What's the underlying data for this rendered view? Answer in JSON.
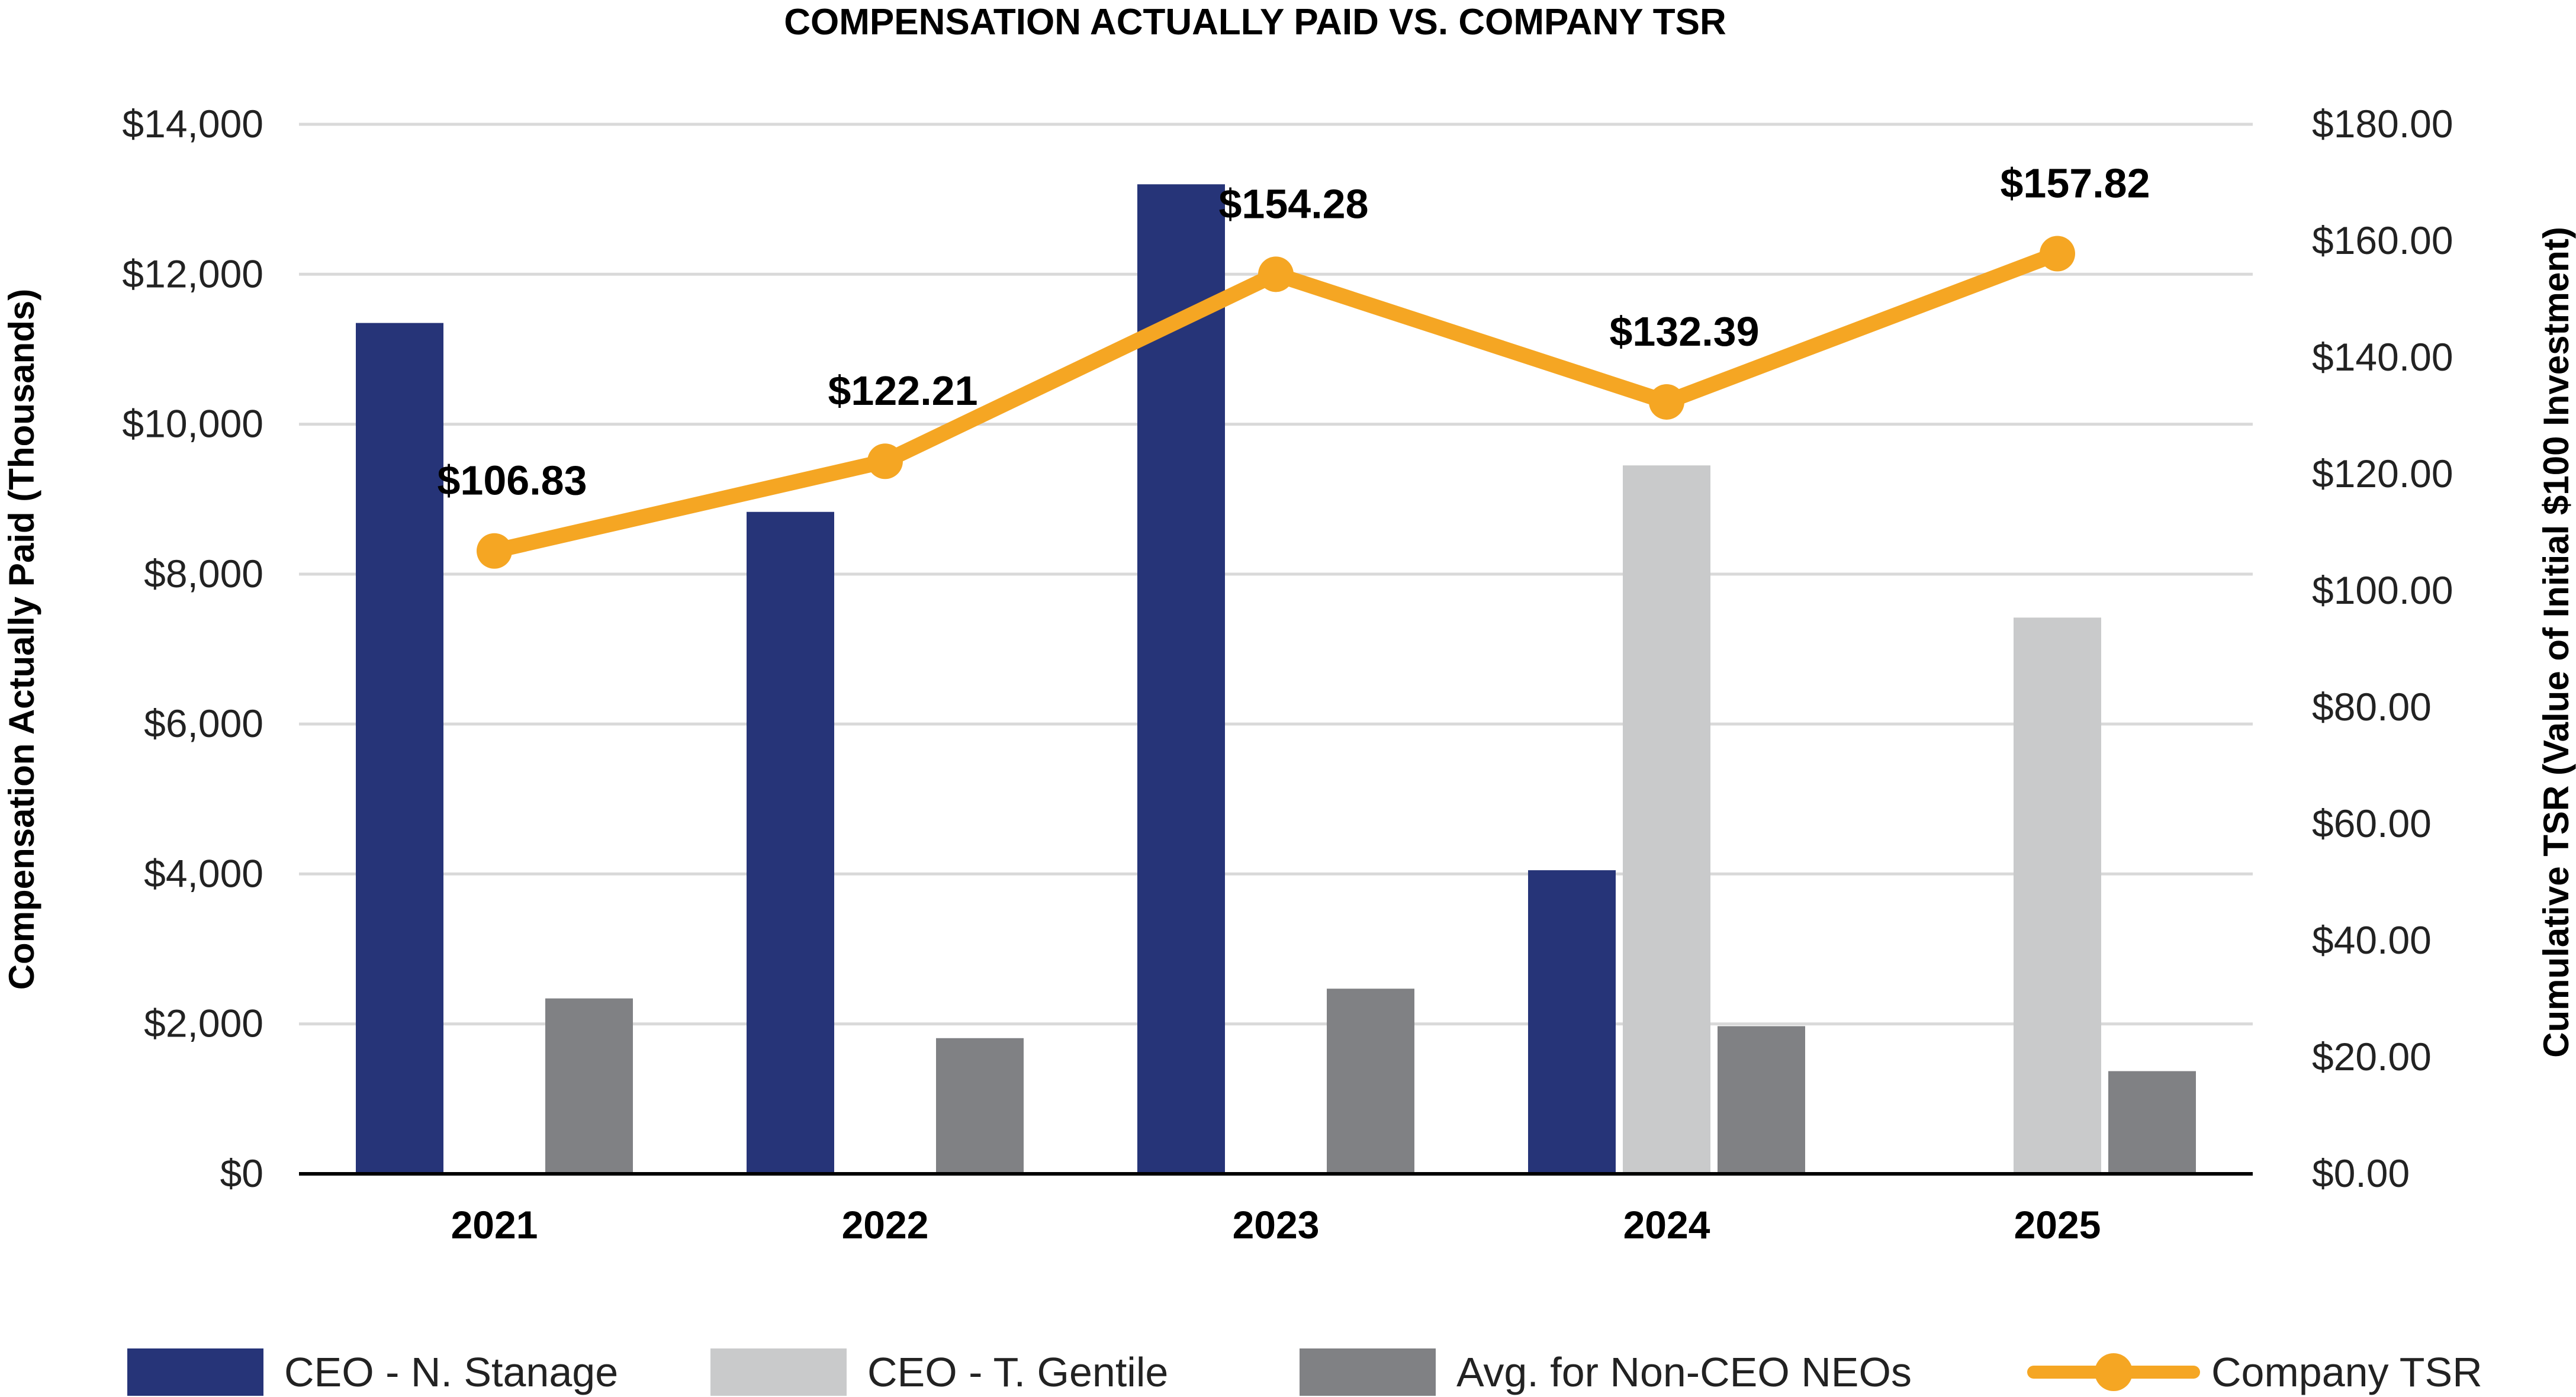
{
  "chart_data": {
    "type": "bar",
    "title": "COMPENSATION ACTUALLY PAID VS. COMPANY TSR",
    "categories": [
      "2021",
      "2022",
      "2023",
      "2024",
      "2025"
    ],
    "ylabel": "Compensation Actually Paid (Thousands)",
    "y2label": "Cumulative TSR (Value of Initial $100 Investment)",
    "ylim": [
      0,
      14000
    ],
    "y2lim": [
      0,
      180
    ],
    "yticks": [
      {
        "value": 0,
        "label": "$0"
      },
      {
        "value": 2000,
        "label": "$2,000"
      },
      {
        "value": 4000,
        "label": "$4,000"
      },
      {
        "value": 6000,
        "label": "$6,000"
      },
      {
        "value": 8000,
        "label": "$8,000"
      },
      {
        "value": 10000,
        "label": "$10,000"
      },
      {
        "value": 12000,
        "label": "$12,000"
      },
      {
        "value": 14000,
        "label": "$14,000"
      }
    ],
    "y2ticks": [
      {
        "value": 0,
        "label": "$0.00"
      },
      {
        "value": 20,
        "label": "$20.00"
      },
      {
        "value": 40,
        "label": "$40.00"
      },
      {
        "value": 60,
        "label": "$60.00"
      },
      {
        "value": 80,
        "label": "$80.00"
      },
      {
        "value": 100,
        "label": "$100.00"
      },
      {
        "value": 120,
        "label": "$120.00"
      },
      {
        "value": 140,
        "label": "$140.00"
      },
      {
        "value": 160,
        "label": "$160.00"
      },
      {
        "value": 180,
        "label": "$180.00"
      }
    ],
    "grid": true,
    "legend_position": "bottom",
    "series": [
      {
        "name": "CEO - N. Stanage",
        "type": "bar",
        "color": "#263478",
        "values": [
          11350,
          8830,
          13200,
          4050,
          null
        ]
      },
      {
        "name": "CEO - T. Gentile",
        "type": "bar",
        "color": "#c9cacb",
        "values": [
          null,
          null,
          null,
          9450,
          7420
        ]
      },
      {
        "name": "Avg. for Non-CEO NEOs",
        "type": "bar",
        "color": "#808184",
        "values": [
          2340,
          1810,
          2470,
          1970,
          1370
        ]
      },
      {
        "name": "Company TSR",
        "type": "line",
        "axis": "right",
        "color": "#f5a623",
        "values": [
          106.83,
          122.21,
          154.28,
          132.39,
          157.82
        ],
        "labels": [
          "$106.83",
          "$122.21",
          "$154.28",
          "$132.39",
          "$157.82"
        ]
      }
    ]
  }
}
